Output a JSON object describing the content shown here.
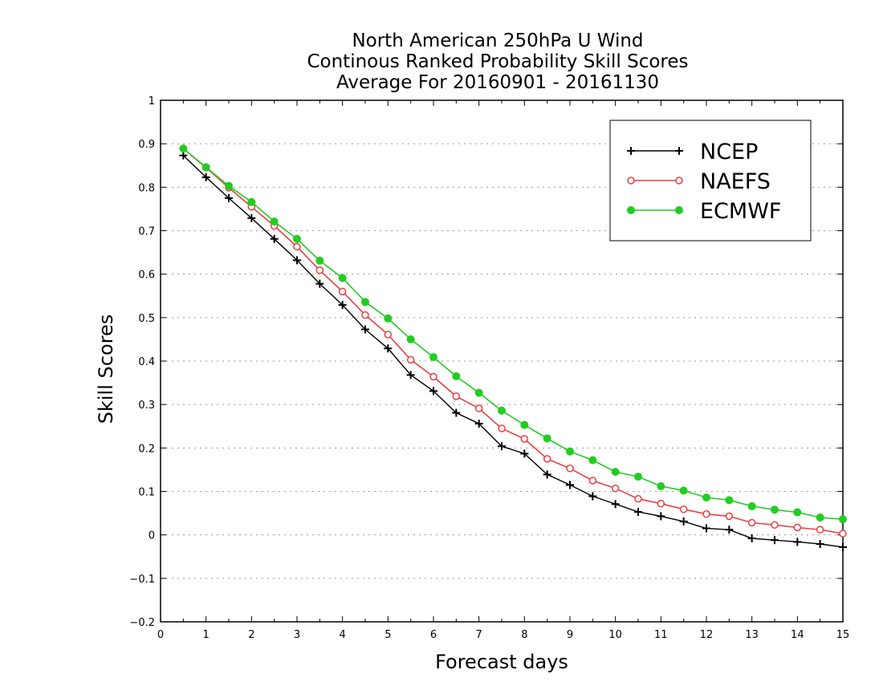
{
  "chart_data": {
    "type": "line",
    "title": [
      "North American 250hPa U Wind",
      "Continous Ranked Probability Skill Scores",
      "Average For 20160901 - 20161130"
    ],
    "xlabel": "Forecast days",
    "ylabel": "Skill Scores",
    "xlim": [
      0,
      15
    ],
    "ylim": [
      -0.2,
      1
    ],
    "x_ticks": [
      0,
      1,
      2,
      3,
      4,
      5,
      6,
      7,
      8,
      9,
      10,
      11,
      12,
      13,
      14,
      15
    ],
    "y_ticks": [
      -0.2,
      -0.1,
      0,
      0.1,
      0.2,
      0.3,
      0.4,
      0.5,
      0.6,
      0.7,
      0.8,
      0.9,
      1
    ],
    "y_tick_labels": [
      "−0.2",
      "−0.1",
      "0",
      "0.1",
      "0.2",
      "0.3",
      "0.4",
      "0.5",
      "0.6",
      "0.7",
      "0.8",
      "0.9",
      "1"
    ],
    "grid": "horizontal dotted",
    "legend_position": "top-right",
    "x": [
      0.5,
      1,
      1.5,
      2,
      2.5,
      3,
      3.5,
      4,
      4.5,
      5,
      5.5,
      6,
      6.5,
      7,
      7.5,
      8,
      8.5,
      9,
      9.5,
      10,
      10.5,
      11,
      11.5,
      12,
      12.5,
      13,
      13.5,
      14,
      14.5,
      15
    ],
    "series": [
      {
        "name": "NCEP",
        "color": "#000000",
        "marker": "plus",
        "values": [
          0.873,
          0.823,
          0.775,
          0.729,
          0.681,
          0.632,
          0.578,
          0.529,
          0.473,
          0.429,
          0.368,
          0.331,
          0.281,
          0.256,
          0.204,
          0.187,
          0.139,
          0.115,
          0.089,
          0.071,
          0.053,
          0.043,
          0.031,
          0.015,
          0.012,
          -0.008,
          -0.012,
          -0.016,
          -0.021,
          -0.028
        ]
      },
      {
        "name": "NAEFS",
        "color": "#e84040",
        "marker": "open-circle",
        "values": [
          0.889,
          0.845,
          0.799,
          0.755,
          0.711,
          0.663,
          0.609,
          0.56,
          0.506,
          0.461,
          0.403,
          0.364,
          0.319,
          0.291,
          0.245,
          0.221,
          0.175,
          0.153,
          0.125,
          0.107,
          0.083,
          0.072,
          0.059,
          0.048,
          0.043,
          0.028,
          0.023,
          0.017,
          0.012,
          0.003
        ]
      },
      {
        "name": "ECMWF",
        "color": "#22cc22",
        "marker": "filled-circle",
        "values": [
          0.889,
          0.846,
          0.803,
          0.766,
          0.721,
          0.681,
          0.631,
          0.591,
          0.536,
          0.498,
          0.45,
          0.409,
          0.365,
          0.327,
          0.286,
          0.253,
          0.222,
          0.192,
          0.172,
          0.145,
          0.134,
          0.112,
          0.102,
          0.086,
          0.08,
          0.066,
          0.058,
          0.052,
          0.04,
          0.036
        ]
      }
    ]
  }
}
